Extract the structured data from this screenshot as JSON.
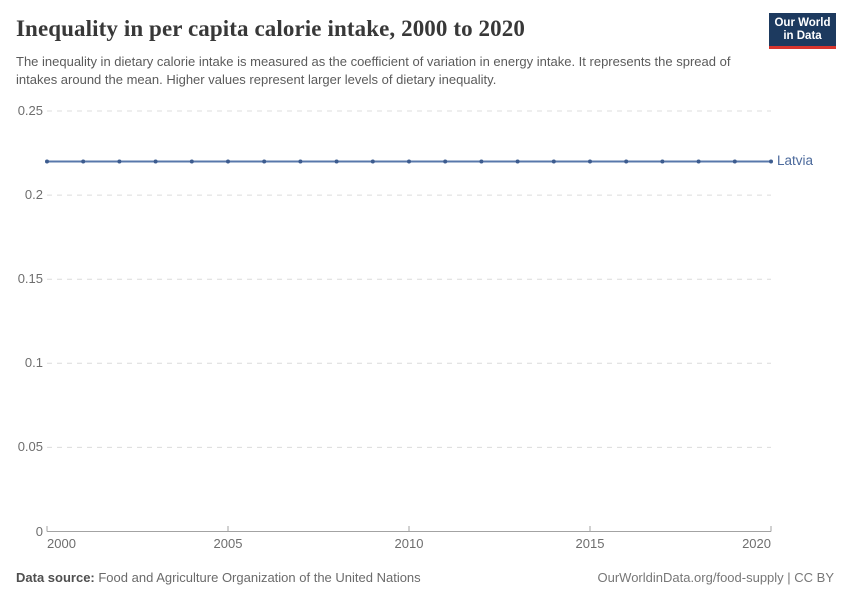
{
  "header": {
    "logo": {
      "line1": "Our World",
      "line2": "in Data"
    }
  },
  "footer": {
    "source_label": "Data source:",
    "source_text": " Food and Agriculture Organization of the United Nations",
    "credit": "OurWorldinData.org/food-supply | CC BY"
  },
  "colors": {
    "line": "#5878ab",
    "marker": "#3d5c8f",
    "series_label": "#4c6a9c",
    "grid": "#dcdcdc",
    "axis": "#a3a3a3",
    "tick_label": "#6e6e6e",
    "logo_bg": "#1d3a5f",
    "logo_red": "#d8352e",
    "title_text": "#383838",
    "subtitle_text": "#5b5b5b"
  },
  "chart_data": {
    "type": "line",
    "title": "Inequality in per capita calorie intake, 2000 to 2020",
    "subtitle": "The inequality in dietary calorie intake is measured as the coefficient of variation in energy intake. It represents the spread of intakes around the mean. Higher values represent larger levels of dietary inequality.",
    "series": [
      {
        "name": "Latvia",
        "x": [
          2000,
          2001,
          2002,
          2003,
          2004,
          2005,
          2006,
          2007,
          2008,
          2009,
          2010,
          2011,
          2012,
          2013,
          2014,
          2015,
          2016,
          2017,
          2018,
          2019,
          2020
        ],
        "values": [
          0.22,
          0.22,
          0.22,
          0.22,
          0.22,
          0.22,
          0.22,
          0.22,
          0.22,
          0.22,
          0.22,
          0.22,
          0.22,
          0.22,
          0.22,
          0.22,
          0.22,
          0.22,
          0.22,
          0.22,
          0.22
        ]
      }
    ],
    "xlim": [
      2000,
      2020
    ],
    "ylim": [
      0,
      0.25
    ],
    "yticks": [
      0,
      0.05,
      0.1,
      0.15,
      0.2,
      0.25
    ],
    "ytick_labels": [
      "0",
      "0.05",
      "0.1",
      "0.15",
      "0.2",
      "0.25"
    ],
    "xticks": [
      2000,
      2005,
      2010,
      2015,
      2020
    ],
    "xtick_labels": [
      "2000",
      "2005",
      "2010",
      "2015",
      "2020"
    ],
    "grid": "horizontal-dashed",
    "legend": "end-of-line-label"
  }
}
